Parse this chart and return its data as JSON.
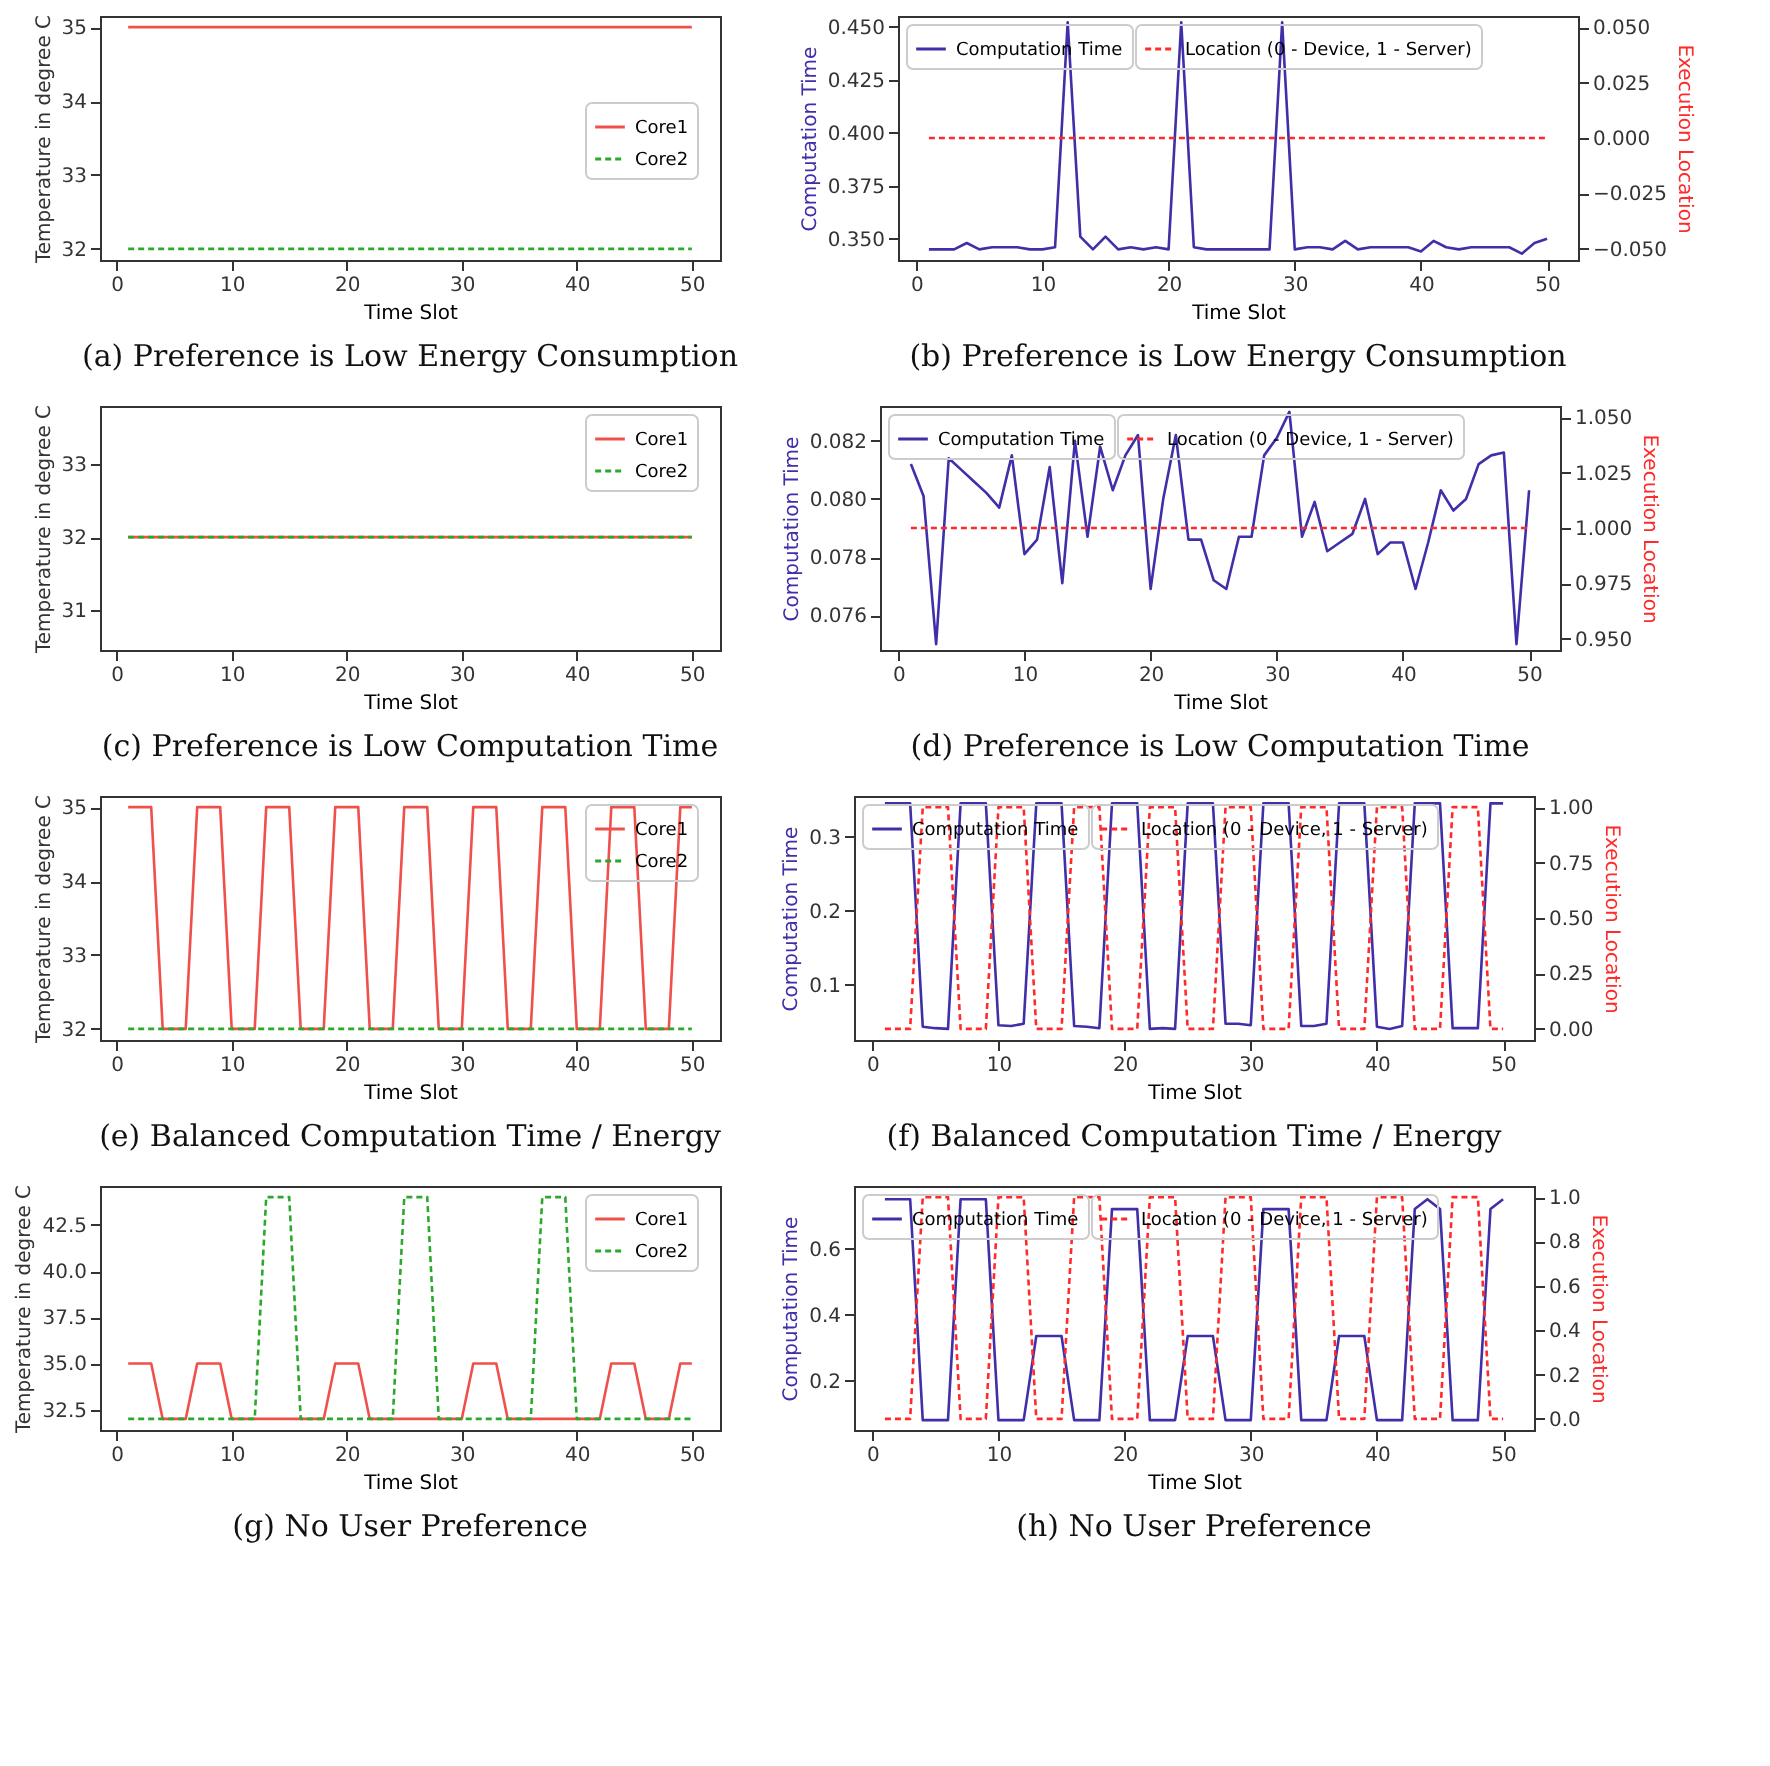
{
  "chart_data": [
    {
      "type": "line",
      "title": "(a) Preference is Low Energy Consumption",
      "xlabel": "Time Slot",
      "ylabel": "Temperature in degree C",
      "x": [
        1,
        2,
        3,
        4,
        5,
        6,
        7,
        8,
        9,
        10,
        11,
        12,
        13,
        14,
        15,
        16,
        17,
        18,
        19,
        20,
        21,
        22,
        23,
        24,
        25,
        26,
        27,
        28,
        29,
        30,
        31,
        32,
        33,
        34,
        35,
        36,
        37,
        38,
        39,
        40,
        41,
        42,
        43,
        44,
        45,
        46,
        47,
        48,
        49,
        50
      ],
      "xlim": [
        -1.45,
        52.45
      ],
      "xticks": [
        0,
        10,
        20,
        30,
        40,
        50
      ],
      "ylim": [
        31.85,
        35.15
      ],
      "yticks": [
        32,
        33,
        34,
        35
      ],
      "legend": "right",
      "series": [
        {
          "name": "Core1",
          "color": "#f0504a",
          "line_style": "solid",
          "values": [
            35,
            35,
            35,
            35,
            35,
            35,
            35,
            35,
            35,
            35,
            35,
            35,
            35,
            35,
            35,
            35,
            35,
            35,
            35,
            35,
            35,
            35,
            35,
            35,
            35,
            35,
            35,
            35,
            35,
            35,
            35,
            35,
            35,
            35,
            35,
            35,
            35,
            35,
            35,
            35,
            35,
            35,
            35,
            35,
            35,
            35,
            35,
            35,
            35,
            35
          ]
        },
        {
          "name": "Core2",
          "color": "#2ca82c",
          "line_style": "dashed",
          "values": [
            32,
            32,
            32,
            32,
            32,
            32,
            32,
            32,
            32,
            32,
            32,
            32,
            32,
            32,
            32,
            32,
            32,
            32,
            32,
            32,
            32,
            32,
            32,
            32,
            32,
            32,
            32,
            32,
            32,
            32,
            32,
            32,
            32,
            32,
            32,
            32,
            32,
            32,
            32,
            32,
            32,
            32,
            32,
            32,
            32,
            32,
            32,
            32,
            32,
            32
          ]
        }
      ]
    },
    {
      "type": "line",
      "title": "(b) Preference is Low Energy Consumption",
      "xlabel": "Time Slot",
      "ylabel": "Computation Time",
      "y2label": "Execution Location",
      "x": [
        1,
        2,
        3,
        4,
        5,
        6,
        7,
        8,
        9,
        10,
        11,
        12,
        13,
        14,
        15,
        16,
        17,
        18,
        19,
        20,
        21,
        22,
        23,
        24,
        25,
        26,
        27,
        28,
        29,
        30,
        31,
        32,
        33,
        34,
        35,
        36,
        37,
        38,
        39,
        40,
        41,
        42,
        43,
        44,
        45,
        46,
        47,
        48,
        49,
        50
      ],
      "xlim": [
        -1.45,
        52.45
      ],
      "xticks": [
        0,
        10,
        20,
        30,
        40,
        50
      ],
      "ylim": [
        0.34,
        0.455
      ],
      "yticks": [
        {
          "value": 0.35,
          "label": "0.350"
        },
        0.375,
        {
          "value": 0.4,
          "label": "0.400"
        },
        0.425,
        {
          "value": 0.45,
          "label": "0.450"
        }
      ],
      "y2lim": [
        -0.055,
        0.055
      ],
      "y2ticks": [
        {
          "value": -0.05,
          "label": "−0.050"
        },
        {
          "value": -0.025,
          "label": "−0.025"
        },
        {
          "value": 0,
          "label": "0.000"
        },
        0.025,
        {
          "value": 0.05,
          "label": "0.050"
        }
      ],
      "legend": "top left",
      "series": [
        {
          "name": "Computation Time",
          "color": "#3f2fa8",
          "line_style": "solid",
          "values": [
            0.345,
            0.345,
            0.345,
            0.348,
            0.345,
            0.346,
            0.346,
            0.346,
            0.345,
            0.345,
            0.346,
            0.452,
            0.351,
            0.345,
            0.351,
            0.345,
            0.346,
            0.345,
            0.346,
            0.345,
            0.452,
            0.346,
            0.345,
            0.345,
            0.345,
            0.345,
            0.345,
            0.345,
            0.452,
            0.345,
            0.346,
            0.346,
            0.345,
            0.349,
            0.345,
            0.346,
            0.346,
            0.346,
            0.346,
            0.344,
            0.349,
            0.346,
            0.345,
            0.346,
            0.346,
            0.346,
            0.346,
            0.343,
            0.348,
            0.35
          ]
        },
        {
          "name": "Location (0 - Device, 1 - Server)",
          "color": "#ff2a2a",
          "line_style": "dashed",
          "axis": "y2",
          "values": [
            0,
            0,
            0,
            0,
            0,
            0,
            0,
            0,
            0,
            0,
            0,
            0,
            0,
            0,
            0,
            0,
            0,
            0,
            0,
            0,
            0,
            0,
            0,
            0,
            0,
            0,
            0,
            0,
            0,
            0,
            0,
            0,
            0,
            0,
            0,
            0,
            0,
            0,
            0,
            0,
            0,
            0,
            0,
            0,
            0,
            0,
            0,
            0,
            0,
            0
          ]
        }
      ]
    },
    {
      "type": "line",
      "title": "(c) Preference is Low Computation Time",
      "xlabel": "Time Slot",
      "ylabel": "Temperature in degree C",
      "x": [
        1,
        2,
        3,
        4,
        5,
        6,
        7,
        8,
        9,
        10,
        11,
        12,
        13,
        14,
        15,
        16,
        17,
        18,
        19,
        20,
        21,
        22,
        23,
        24,
        25,
        26,
        27,
        28,
        29,
        30,
        31,
        32,
        33,
        34,
        35,
        36,
        37,
        38,
        39,
        40,
        41,
        42,
        43,
        44,
        45,
        46,
        47,
        48,
        49,
        50
      ],
      "xlim": [
        -1.45,
        52.45
      ],
      "xticks": [
        0,
        10,
        20,
        30,
        40,
        50
      ],
      "ylim": [
        30.45,
        33.8
      ],
      "yticks": [
        31,
        32,
        33
      ],
      "legend": "top right",
      "series": [
        {
          "name": "Core1",
          "color": "#f0504a",
          "line_style": "solid",
          "values": [
            32,
            32,
            32,
            32,
            32,
            32,
            32,
            32,
            32,
            32,
            32,
            32,
            32,
            32,
            32,
            32,
            32,
            32,
            32,
            32,
            32,
            32,
            32,
            32,
            32,
            32,
            32,
            32,
            32,
            32,
            32,
            32,
            32,
            32,
            32,
            32,
            32,
            32,
            32,
            32,
            32,
            32,
            32,
            32,
            32,
            32,
            32,
            32,
            32,
            32
          ]
        },
        {
          "name": "Core2",
          "color": "#2ca82c",
          "line_style": "dashed",
          "values": [
            32,
            32,
            32,
            32,
            32,
            32,
            32,
            32,
            32,
            32,
            32,
            32,
            32,
            32,
            32,
            32,
            32,
            32,
            32,
            32,
            32,
            32,
            32,
            32,
            32,
            32,
            32,
            32,
            32,
            32,
            32,
            32,
            32,
            32,
            32,
            32,
            32,
            32,
            32,
            32,
            32,
            32,
            32,
            32,
            32,
            32,
            32,
            32,
            32,
            32
          ]
        }
      ]
    },
    {
      "type": "line",
      "title": "(d) Preference is Low Computation Time",
      "xlabel": "Time Slot",
      "ylabel": "Computation Time",
      "y2label": "Execution Location",
      "x": [
        1,
        2,
        3,
        4,
        5,
        6,
        7,
        8,
        9,
        10,
        11,
        12,
        13,
        14,
        15,
        16,
        17,
        18,
        19,
        20,
        21,
        22,
        23,
        24,
        25,
        26,
        27,
        28,
        29,
        30,
        31,
        32,
        33,
        34,
        35,
        36,
        37,
        38,
        39,
        40,
        41,
        42,
        43,
        44,
        45,
        46,
        47,
        48,
        49,
        50
      ],
      "xlim": [
        -1.45,
        52.45
      ],
      "xticks": [
        0,
        10,
        20,
        30,
        40,
        50
      ],
      "ylim": [
        0.0748,
        0.0832
      ],
      "yticks": [
        0.076,
        0.078,
        {
          "value": 0.08,
          "label": "0.080"
        },
        0.082
      ],
      "y2lim": [
        0.945,
        1.055
      ],
      "y2ticks": [
        {
          "value": 0.95,
          "label": "0.950"
        },
        0.975,
        {
          "value": 1,
          "label": "1.000"
        },
        1.025,
        {
          "value": 1.05,
          "label": "1.050"
        }
      ],
      "legend": "top left",
      "series": [
        {
          "name": "Computation Time",
          "color": "#3f2fa8",
          "line_style": "solid",
          "values": [
            0.0812,
            0.0801,
            0.075,
            0.0814,
            0.081,
            0.0806,
            0.0802,
            0.0797,
            0.0815,
            0.0781,
            0.0786,
            0.0811,
            0.0771,
            0.082,
            0.0787,
            0.0818,
            0.0803,
            0.0815,
            0.0822,
            0.0769,
            0.08,
            0.0822,
            0.0786,
            0.0786,
            0.0772,
            0.0769,
            0.0787,
            0.0787,
            0.0815,
            0.0821,
            0.083,
            0.0787,
            0.0799,
            0.0782,
            0.0785,
            0.0788,
            0.08,
            0.0781,
            0.0785,
            0.0785,
            0.0769,
            0.0785,
            0.0803,
            0.0796,
            0.08,
            0.0812,
            0.0815,
            0.0816,
            0.075,
            0.0803
          ]
        },
        {
          "name": "Location (0 - Device, 1 - Server)",
          "color": "#ff2a2a",
          "line_style": "dashed",
          "axis": "y2",
          "values": [
            1,
            1,
            1,
            1,
            1,
            1,
            1,
            1,
            1,
            1,
            1,
            1,
            1,
            1,
            1,
            1,
            1,
            1,
            1,
            1,
            1,
            1,
            1,
            1,
            1,
            1,
            1,
            1,
            1,
            1,
            1,
            1,
            1,
            1,
            1,
            1,
            1,
            1,
            1,
            1,
            1,
            1,
            1,
            1,
            1,
            1,
            1,
            1,
            1,
            1
          ]
        }
      ]
    },
    {
      "type": "line",
      "title": "(e) Balanced Computation Time / Energy",
      "xlabel": "Time Slot",
      "ylabel": "Temperature in degree C",
      "x": [
        1,
        2,
        3,
        4,
        5,
        6,
        7,
        8,
        9,
        10,
        11,
        12,
        13,
        14,
        15,
        16,
        17,
        18,
        19,
        20,
        21,
        22,
        23,
        24,
        25,
        26,
        27,
        28,
        29,
        30,
        31,
        32,
        33,
        34,
        35,
        36,
        37,
        38,
        39,
        40,
        41,
        42,
        43,
        44,
        45,
        46,
        47,
        48,
        49,
        50
      ],
      "xlim": [
        -1.45,
        52.45
      ],
      "xticks": [
        0,
        10,
        20,
        30,
        40,
        50
      ],
      "ylim": [
        31.85,
        35.15
      ],
      "yticks": [
        32,
        33,
        34,
        35
      ],
      "legend": "top right",
      "series": [
        {
          "name": "Core1",
          "color": "#f0504a",
          "line_style": "solid",
          "values": [
            35,
            35,
            35,
            32,
            32,
            32,
            35,
            35,
            35,
            32,
            32,
            32,
            35,
            35,
            35,
            32,
            32,
            32,
            35,
            35,
            35,
            32,
            32,
            32,
            35,
            35,
            35,
            32,
            32,
            32,
            35,
            35,
            35,
            32,
            32,
            32,
            35,
            35,
            35,
            32,
            32,
            32,
            35,
            35,
            35,
            32,
            32,
            32,
            35,
            35
          ]
        },
        {
          "name": "Core2",
          "color": "#2ca82c",
          "line_style": "dashed",
          "values": [
            32,
            32,
            32,
            32,
            32,
            32,
            32,
            32,
            32,
            32,
            32,
            32,
            32,
            32,
            32,
            32,
            32,
            32,
            32,
            32,
            32,
            32,
            32,
            32,
            32,
            32,
            32,
            32,
            32,
            32,
            32,
            32,
            32,
            32,
            32,
            32,
            32,
            32,
            32,
            32,
            32,
            32,
            32,
            32,
            32,
            32,
            32,
            32,
            32,
            32
          ]
        }
      ]
    },
    {
      "type": "line",
      "title": "(f) Balanced Computation Time / Energy",
      "xlabel": "Time Slot",
      "ylabel": "Computation Time",
      "y2label": "Execution Location",
      "x": [
        1,
        2,
        3,
        4,
        5,
        6,
        7,
        8,
        9,
        10,
        11,
        12,
        13,
        14,
        15,
        16,
        17,
        18,
        19,
        20,
        21,
        22,
        23,
        24,
        25,
        26,
        27,
        28,
        29,
        30,
        31,
        32,
        33,
        34,
        35,
        36,
        37,
        38,
        39,
        40,
        41,
        42,
        43,
        44,
        45,
        46,
        47,
        48,
        49,
        50
      ],
      "xlim": [
        -1.45,
        52.45
      ],
      "xticks": [
        0,
        10,
        20,
        30,
        40,
        50
      ],
      "ylim": [
        0.025,
        0.355
      ],
      "yticks": [
        0.1,
        0.2,
        0.3
      ],
      "y2lim": [
        -0.05,
        1.05
      ],
      "y2ticks": [
        {
          "value": 0,
          "label": "0.00"
        },
        0.25,
        {
          "value": 0.5,
          "label": "0.50"
        },
        0.75,
        {
          "value": 1,
          "label": "1.00"
        }
      ],
      "legend": "top left",
      "series": [
        {
          "name": "Computation Time",
          "color": "#3f2fa8",
          "line_style": "solid",
          "values": [
            0.345,
            0.345,
            0.345,
            0.043,
            0.041,
            0.04,
            0.345,
            0.345,
            0.345,
            0.045,
            0.044,
            0.047,
            0.345,
            0.345,
            0.345,
            0.044,
            0.043,
            0.041,
            0.345,
            0.345,
            0.345,
            0.04,
            0.041,
            0.04,
            0.345,
            0.345,
            0.345,
            0.047,
            0.047,
            0.045,
            0.345,
            0.345,
            0.345,
            0.044,
            0.044,
            0.047,
            0.345,
            0.345,
            0.345,
            0.043,
            0.04,
            0.044,
            0.345,
            0.345,
            0.345,
            0.041,
            0.041,
            0.041,
            0.345,
            0.345
          ]
        },
        {
          "name": "Location (0 - Device, 1 - Server)",
          "color": "#ff2a2a",
          "line_style": "dashed",
          "axis": "y2",
          "values": [
            0,
            0,
            0,
            1,
            1,
            1,
            0,
            0,
            0,
            1,
            1,
            1,
            0,
            0,
            0,
            1,
            1,
            1,
            0,
            0,
            0,
            1,
            1,
            1,
            0,
            0,
            0,
            1,
            1,
            1,
            0,
            0,
            0,
            1,
            1,
            1,
            0,
            0,
            0,
            1,
            1,
            1,
            0,
            0,
            0,
            1,
            1,
            1,
            0,
            0
          ]
        }
      ]
    },
    {
      "type": "line",
      "title": "(g) No User Preference",
      "xlabel": "Time Slot",
      "ylabel": "Temperature in degree C",
      "x": [
        1,
        2,
        3,
        4,
        5,
        6,
        7,
        8,
        9,
        10,
        11,
        12,
        13,
        14,
        15,
        16,
        17,
        18,
        19,
        20,
        21,
        22,
        23,
        24,
        25,
        26,
        27,
        28,
        29,
        30,
        31,
        32,
        33,
        34,
        35,
        36,
        37,
        38,
        39,
        40,
        41,
        42,
        43,
        44,
        45,
        46,
        47,
        48,
        49,
        50
      ],
      "xlim": [
        -1.45,
        52.45
      ],
      "xticks": [
        0,
        10,
        20,
        30,
        40,
        50
      ],
      "ylim": [
        31.4,
        44.6
      ],
      "yticks": [
        32.5,
        {
          "value": 35,
          "label": "35.0"
        },
        37.5,
        {
          "value": 40,
          "label": "40.0"
        },
        42.5
      ],
      "legend": "top right",
      "series": [
        {
          "name": "Core1",
          "color": "#f0504a",
          "line_style": "solid",
          "values": [
            35,
            35,
            35,
            32,
            32,
            32,
            35,
            35,
            35,
            32,
            32,
            32,
            32,
            32,
            32,
            32,
            32,
            32,
            35,
            35,
            35,
            32,
            32,
            32,
            32,
            32,
            32,
            32,
            32,
            32,
            35,
            35,
            35,
            32,
            32,
            32,
            32,
            32,
            32,
            32,
            32,
            32,
            35,
            35,
            35,
            32,
            32,
            32,
            35,
            35
          ]
        },
        {
          "name": "Core2",
          "color": "#2ca82c",
          "line_style": "dashed",
          "values": [
            32,
            32,
            32,
            32,
            32,
            32,
            32,
            32,
            32,
            32,
            32,
            32,
            44,
            44,
            44,
            32,
            32,
            32,
            32,
            32,
            32,
            32,
            32,
            32,
            44,
            44,
            44,
            32,
            32,
            32,
            32,
            32,
            32,
            32,
            32,
            32,
            44,
            44,
            44,
            32,
            32,
            32,
            32,
            32,
            32,
            32,
            32,
            32,
            32,
            32
          ]
        }
      ]
    },
    {
      "type": "line",
      "title": "(h) No User Preference",
      "xlabel": "Time Slot",
      "ylabel": "Computation Time",
      "y2label": "Execution Location",
      "x": [
        1,
        2,
        3,
        4,
        5,
        6,
        7,
        8,
        9,
        10,
        11,
        12,
        13,
        14,
        15,
        16,
        17,
        18,
        19,
        20,
        21,
        22,
        23,
        24,
        25,
        26,
        27,
        28,
        29,
        30,
        31,
        32,
        33,
        34,
        35,
        36,
        37,
        38,
        39,
        40,
        41,
        42,
        43,
        44,
        45,
        46,
        47,
        48,
        49,
        50
      ],
      "xlim": [
        -1.45,
        52.45
      ],
      "xticks": [
        0,
        10,
        20,
        30,
        40,
        50
      ],
      "ylim": [
        0.05,
        0.79
      ],
      "yticks": [
        0.2,
        0.4,
        0.6
      ],
      "y2lim": [
        -0.05,
        1.05
      ],
      "y2ticks": [
        {
          "value": 0,
          "label": "0.0"
        },
        0.2,
        0.4,
        0.6,
        0.8,
        {
          "value": 1,
          "label": "1.0"
        }
      ],
      "legend": "top left",
      "series": [
        {
          "name": "Computation Time",
          "color": "#3f2fa8",
          "line_style": "solid",
          "values": [
            0.75,
            0.75,
            0.75,
            0.08,
            0.08,
            0.08,
            0.75,
            0.75,
            0.75,
            0.08,
            0.08,
            0.08,
            0.335,
            0.335,
            0.335,
            0.08,
            0.08,
            0.08,
            0.72,
            0.72,
            0.72,
            0.08,
            0.08,
            0.08,
            0.335,
            0.335,
            0.335,
            0.08,
            0.08,
            0.08,
            0.72,
            0.72,
            0.72,
            0.08,
            0.08,
            0.08,
            0.335,
            0.335,
            0.335,
            0.08,
            0.08,
            0.08,
            0.72,
            0.75,
            0.72,
            0.08,
            0.08,
            0.08,
            0.72,
            0.75
          ]
        },
        {
          "name": "Location (0 - Device, 1 - Server)",
          "color": "#ff2a2a",
          "line_style": "dashed",
          "axis": "y2",
          "values": [
            0,
            0,
            0,
            1,
            1,
            1,
            0,
            0,
            0,
            1,
            1,
            1,
            0,
            0,
            0,
            1,
            1,
            1,
            0,
            0,
            0,
            1,
            1,
            1,
            0,
            0,
            0,
            1,
            1,
            1,
            0,
            0,
            0,
            1,
            1,
            1,
            0,
            0,
            0,
            1,
            1,
            1,
            0,
            0,
            0,
            1,
            1,
            1,
            0,
            0
          ]
        }
      ]
    }
  ]
}
